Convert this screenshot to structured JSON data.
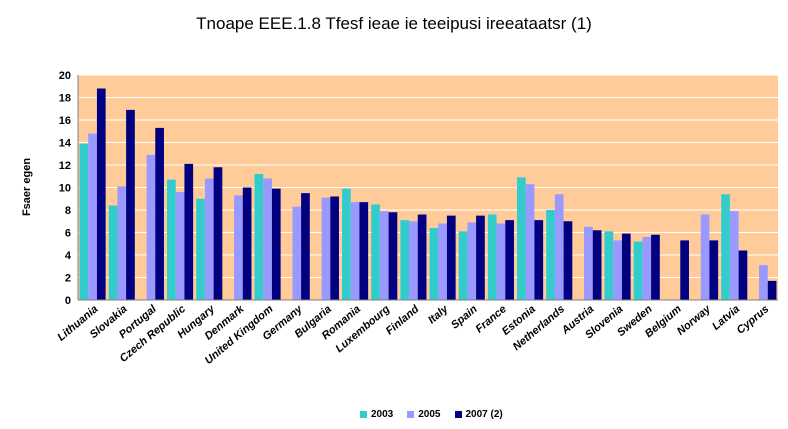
{
  "chart_data": {
    "type": "bar",
    "title": "Tnoape EEE.1.8 Tfesf ieae ie teeipusi ireeataatsr (1)",
    "xlabel": "",
    "ylabel": "Fsaer egen",
    "ylim": [
      0,
      20
    ],
    "yticks": [
      0,
      2,
      4,
      6,
      8,
      10,
      12,
      14,
      16,
      18,
      20
    ],
    "grid": true,
    "legend_position": "bottom",
    "background_color": "#FFCC99",
    "categories": [
      "Lithuania",
      "Slovakia",
      "Portugal",
      "Czech Republic",
      "Hungary",
      "Denmark",
      "United Kingdom",
      "Germany",
      "Bulgaria",
      "Romania",
      "Luxembourg",
      "Finland",
      "Italy",
      "Spain",
      "France",
      "Estonia",
      "Netherlands",
      "Austria",
      "Slovenia",
      "Sweden",
      "Belgium",
      "Norway",
      "Latvia",
      "Cyprus"
    ],
    "series": [
      {
        "name": "2003",
        "color": "#33CCCC",
        "values": [
          13.9,
          8.4,
          null,
          10.7,
          9.0,
          null,
          11.2,
          null,
          null,
          9.9,
          8.5,
          7.1,
          6.4,
          6.1,
          7.6,
          10.9,
          8.0,
          null,
          6.1,
          5.2,
          null,
          null,
          9.4,
          null
        ]
      },
      {
        "name": "2005",
        "color": "#9999FF",
        "values": [
          14.8,
          10.1,
          12.9,
          9.6,
          10.8,
          9.3,
          10.8,
          8.3,
          9.1,
          8.7,
          7.9,
          7.0,
          6.8,
          6.9,
          6.8,
          10.3,
          9.4,
          6.5,
          5.3,
          5.6,
          null,
          7.6,
          7.9,
          3.1
        ]
      },
      {
        "name": "2007 (2)",
        "color": "#000080",
        "values": [
          18.8,
          16.9,
          15.3,
          12.1,
          11.8,
          10.0,
          9.9,
          9.5,
          9.2,
          8.7,
          7.8,
          7.6,
          7.5,
          7.5,
          7.1,
          7.1,
          7.0,
          6.2,
          5.9,
          5.8,
          5.3,
          5.3,
          4.4,
          1.7
        ]
      }
    ]
  }
}
